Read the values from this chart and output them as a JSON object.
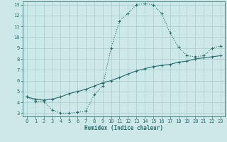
{
  "xlabel": "Humidex (Indice chaleur)",
  "ylabel": "",
  "bg_color": "#cce8e8",
  "grid_color": "#aacccc",
  "line_color": "#2e6b6b",
  "xlim": [
    -0.5,
    23.5
  ],
  "ylim": [
    2.7,
    13.3
  ],
  "xticks": [
    0,
    1,
    2,
    3,
    4,
    5,
    6,
    7,
    8,
    9,
    10,
    11,
    12,
    13,
    14,
    15,
    16,
    17,
    18,
    19,
    20,
    21,
    22,
    23
  ],
  "yticks": [
    3,
    4,
    5,
    6,
    7,
    8,
    9,
    10,
    11,
    12,
    13
  ],
  "curve1_x": [
    0,
    1,
    2,
    3,
    4,
    5,
    6,
    7,
    8,
    9,
    10,
    11,
    12,
    13,
    14,
    15,
    16,
    17,
    18,
    19,
    20,
    21,
    22,
    23
  ],
  "curve1_y": [
    4.5,
    4.1,
    4.1,
    3.3,
    3.0,
    3.0,
    3.1,
    3.2,
    4.7,
    5.5,
    9.0,
    11.5,
    12.2,
    13.0,
    13.1,
    13.0,
    12.2,
    10.4,
    9.1,
    8.3,
    8.2,
    8.3,
    9.0,
    9.2
  ],
  "curve2_x": [
    0,
    1,
    2,
    3,
    4,
    5,
    6,
    7,
    8,
    9,
    10,
    11,
    12,
    13,
    14,
    15,
    16,
    17,
    18,
    19,
    20,
    21,
    22,
    23
  ],
  "curve2_y": [
    4.5,
    4.3,
    4.2,
    4.3,
    4.5,
    4.8,
    5.0,
    5.2,
    5.5,
    5.8,
    6.0,
    6.3,
    6.6,
    6.9,
    7.1,
    7.3,
    7.4,
    7.5,
    7.7,
    7.8,
    8.0,
    8.1,
    8.2,
    8.3
  ]
}
